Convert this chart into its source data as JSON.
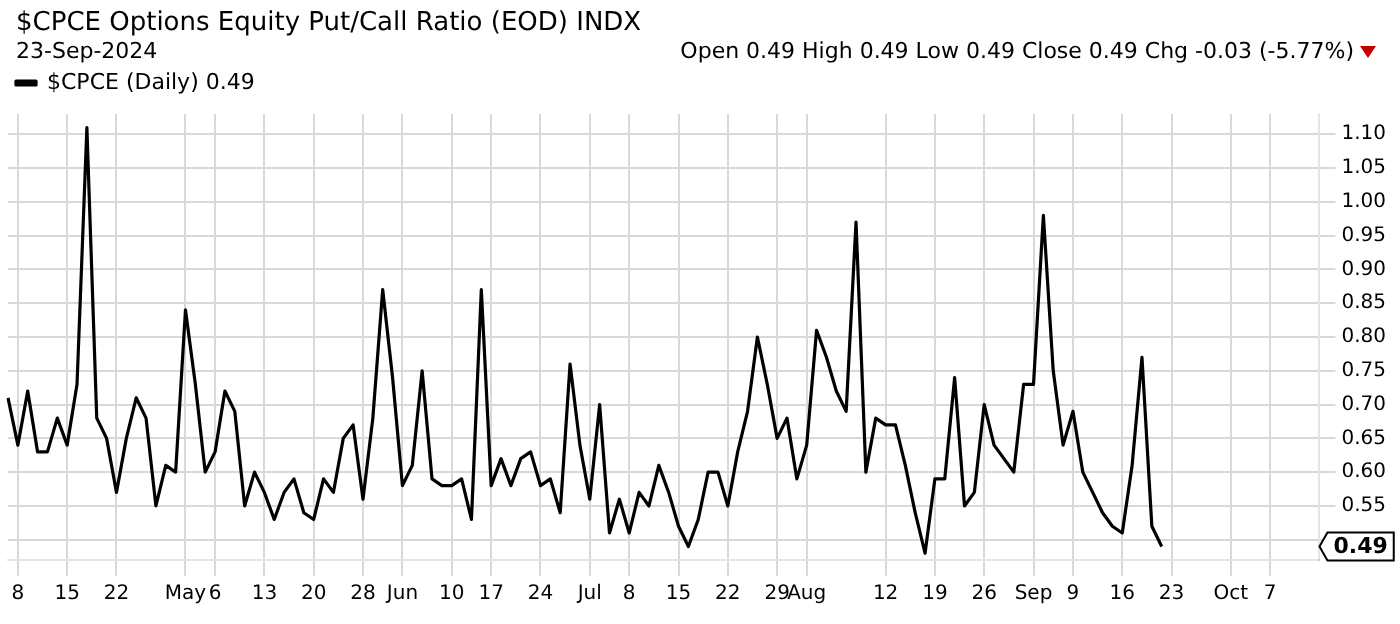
{
  "chart_data": {
    "type": "line",
    "title": "$CPCE Options Equity Put/Call Ratio (EOD) INDX",
    "subtitle": "23-Sep-2024",
    "annotations": [
      "Open 0.49 High 0.49 Low 0.49 Close 0.49 Chg -0.03 (-5.77%)",
      {
        "text": "0.49",
        "y": 0.49
      }
    ],
    "categories": [
      null,
      "8",
      null,
      null,
      null,
      null,
      "15",
      null,
      null,
      null,
      null,
      "22",
      null,
      null,
      null,
      null,
      null,
      null,
      "May",
      null,
      null,
      "6",
      null,
      null,
      null,
      null,
      "13",
      null,
      null,
      null,
      null,
      "20",
      null,
      null,
      null,
      null,
      "28",
      null,
      null,
      null,
      "Jun",
      null,
      null,
      null,
      null,
      "10",
      null,
      null,
      null,
      "17",
      null,
      null,
      null,
      null,
      "24",
      null,
      null,
      null,
      null,
      "Jul",
      null,
      null,
      null,
      "8",
      null,
      null,
      null,
      null,
      "15",
      null,
      null,
      null,
      null,
      "22",
      null,
      null,
      null,
      null,
      "29",
      null,
      null,
      "Aug",
      null,
      null,
      null,
      null,
      null,
      null,
      null,
      "12",
      null,
      null,
      null,
      null,
      "19",
      null,
      null,
      null,
      null,
      "26",
      null,
      null,
      null,
      null,
      "Sep",
      null,
      null,
      null,
      "9",
      null,
      null,
      null,
      null,
      "16",
      null,
      null,
      null,
      null,
      "23",
      null,
      null,
      null,
      null,
      null,
      "Oct",
      null,
      null,
      null,
      "7",
      null,
      null,
      null,
      null,
      null
    ],
    "series": [
      {
        "name": "$CPCE (Daily) 0.49",
        "color": "#000000",
        "values": [
          0.71,
          0.64,
          0.72,
          0.63,
          0.63,
          0.68,
          0.64,
          0.73,
          1.11,
          0.68,
          0.65,
          0.57,
          0.65,
          0.71,
          0.68,
          0.55,
          0.61,
          0.6,
          0.84,
          0.73,
          0.6,
          0.63,
          0.72,
          0.69,
          0.55,
          0.6,
          0.57,
          0.53,
          0.57,
          0.59,
          0.54,
          0.53,
          0.59,
          0.57,
          0.65,
          0.67,
          0.56,
          0.68,
          0.87,
          0.74,
          0.58,
          0.61,
          0.75,
          0.59,
          0.58,
          0.58,
          0.59,
          0.53,
          0.87,
          0.58,
          0.62,
          0.58,
          0.62,
          0.63,
          0.58,
          0.59,
          0.54,
          0.76,
          0.64,
          0.56,
          0.7,
          0.51,
          0.56,
          0.51,
          0.57,
          0.55,
          0.61,
          0.57,
          0.52,
          0.49,
          0.53,
          0.6,
          0.6,
          0.55,
          0.63,
          0.69,
          0.8,
          0.73,
          0.65,
          0.68,
          0.59,
          0.64,
          0.81,
          0.77,
          0.72,
          0.69,
          0.97,
          0.6,
          0.68,
          0.67,
          0.67,
          0.61,
          0.54,
          0.48,
          0.59,
          0.59,
          0.74,
          0.55,
          0.57,
          0.7,
          0.64,
          0.62,
          0.6,
          0.73,
          0.73,
          0.98,
          0.75,
          0.64,
          0.69,
          0.6,
          0.57,
          0.54,
          0.52,
          0.51,
          0.61,
          0.77,
          0.52,
          0.49,
          null,
          null,
          null,
          null,
          null,
          null,
          null,
          null,
          null,
          null,
          null,
          null,
          null,
          null,
          null,
          null
        ]
      }
    ],
    "ylim": [
      0.47,
      1.13
    ],
    "yticks": [
      {
        "value": 0.5,
        "label": null
      },
      0.55,
      {
        "value": 0.6,
        "label": "0.60"
      },
      0.65,
      {
        "value": 0.7,
        "label": "0.70"
      },
      0.75,
      {
        "value": 0.8,
        "label": "0.80"
      },
      0.85,
      {
        "value": 0.9,
        "label": "0.90"
      },
      0.95,
      {
        "value": 1.0,
        "label": "1.00"
      },
      1.05,
      {
        "value": 1.1,
        "label": "1.10"
      }
    ],
    "grid": true,
    "legend": "top left",
    "marker": "none",
    "line_style": "solid"
  }
}
